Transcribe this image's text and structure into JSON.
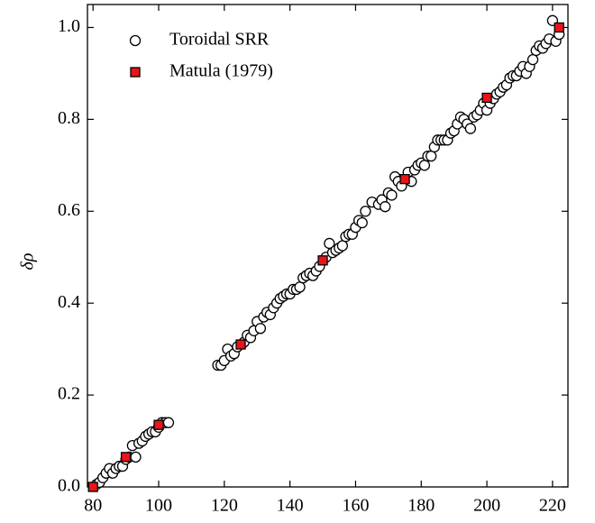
{
  "chart_data": {
    "type": "scatter",
    "ylabel": "δρ",
    "xlim": [
      78.3,
      224.7
    ],
    "ylim": [
      0,
      1.05
    ],
    "xticks": [
      80,
      100,
      120,
      140,
      160,
      180,
      200,
      220
    ],
    "yticks": [
      {
        "value": 0,
        "label": "0.0"
      },
      {
        "value": 0.2,
        "label": "0.2"
      },
      {
        "value": 0.4,
        "label": "0.4"
      },
      {
        "value": 0.6,
        "label": "0.6"
      },
      {
        "value": 0.8,
        "label": "0.8"
      },
      {
        "value": 1,
        "label": "1.0"
      }
    ],
    "legend": "upper left",
    "series": [
      {
        "name": "Toroidal SRR",
        "color": "#ffffff",
        "marker": "circle",
        "x": [
          81,
          82,
          83,
          84,
          85,
          86,
          87,
          88,
          89,
          90,
          91,
          92,
          93,
          94,
          95,
          96,
          97,
          98,
          99,
          100,
          101,
          102,
          103,
          118,
          119,
          120,
          121,
          122,
          123,
          124,
          126,
          127,
          128,
          129,
          130,
          131,
          132,
          133,
          134,
          135,
          136,
          137,
          138,
          139,
          140,
          141,
          142,
          143,
          144,
          145,
          146,
          147,
          148,
          149,
          151,
          152,
          153,
          154,
          155,
          156,
          157,
          158,
          159,
          160,
          161,
          162,
          163,
          165,
          167,
          168,
          169,
          170,
          171,
          172,
          173,
          174,
          176,
          177,
          178,
          179,
          180,
          181,
          182,
          183,
          184,
          185,
          186,
          187,
          188,
          189,
          190,
          191,
          192,
          193,
          194,
          195,
          196,
          197,
          198,
          199,
          200,
          201,
          202,
          203,
          204,
          205,
          206,
          207,
          208,
          209,
          210,
          211,
          212,
          213,
          214,
          215,
          216,
          217,
          218,
          219,
          220,
          221,
          222
        ],
        "values": [
          0.005,
          0.01,
          0.02,
          0.03,
          0.04,
          0.03,
          0.04,
          0.045,
          0.045,
          0.06,
          0.065,
          0.09,
          0.065,
          0.095,
          0.1,
          0.11,
          0.115,
          0.12,
          0.12,
          0.13,
          0.14,
          0.14,
          0.14,
          0.265,
          0.265,
          0.275,
          0.3,
          0.285,
          0.29,
          0.305,
          0.315,
          0.33,
          0.325,
          0.34,
          0.36,
          0.345,
          0.37,
          0.38,
          0.375,
          0.39,
          0.4,
          0.41,
          0.415,
          0.42,
          0.42,
          0.43,
          0.43,
          0.435,
          0.455,
          0.46,
          0.465,
          0.46,
          0.47,
          0.48,
          0.5,
          0.53,
          0.51,
          0.515,
          0.52,
          0.525,
          0.545,
          0.55,
          0.55,
          0.565,
          0.58,
          0.575,
          0.6,
          0.62,
          0.615,
          0.625,
          0.61,
          0.64,
          0.635,
          0.675,
          0.665,
          0.655,
          0.685,
          0.665,
          0.69,
          0.7,
          0.705,
          0.7,
          0.72,
          0.72,
          0.74,
          0.755,
          0.755,
          0.755,
          0.755,
          0.77,
          0.775,
          0.79,
          0.805,
          0.8,
          0.79,
          0.78,
          0.805,
          0.81,
          0.82,
          0.835,
          0.82,
          0.835,
          0.845,
          0.855,
          0.86,
          0.87,
          0.875,
          0.89,
          0.895,
          0.895,
          0.905,
          0.915,
          0.9,
          0.915,
          0.93,
          0.95,
          0.96,
          0.955,
          0.965,
          0.975,
          1.015,
          0.97,
          0.985
        ]
      },
      {
        "name": "Matula (1979)",
        "color": "#e8141a",
        "marker": "square",
        "x": [
          80,
          90,
          100,
          125,
          150,
          175,
          200,
          222
        ],
        "values": [
          0,
          0.065,
          0.135,
          0.31,
          0.493,
          0.67,
          0.847,
          1.0
        ]
      }
    ]
  }
}
